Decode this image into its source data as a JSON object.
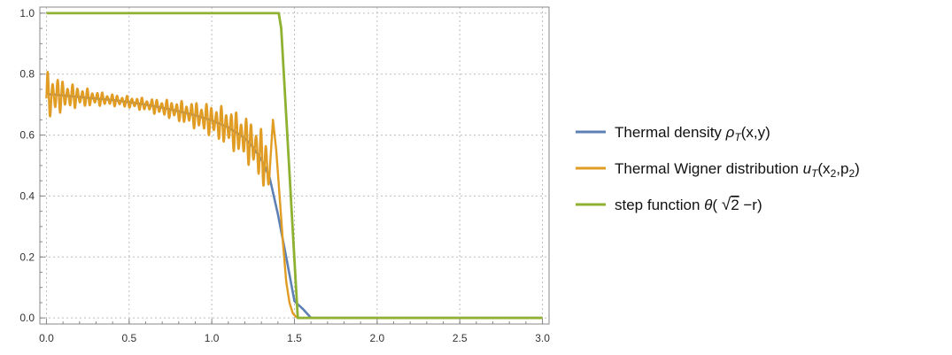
{
  "chart_data": {
    "type": "line",
    "title": "",
    "xlabel": "",
    "ylabel": "",
    "xlim": [
      0,
      3.0
    ],
    "ylim": [
      0,
      1.0
    ],
    "grid": true,
    "legend_position": "right",
    "x_ticks": [
      "0.0",
      "0.5",
      "1.0",
      "1.5",
      "2.0",
      "2.5",
      "3.0"
    ],
    "y_ticks": [
      "0.0",
      "0.2",
      "0.4",
      "0.6",
      "0.8",
      "1.0"
    ],
    "series": [
      {
        "name": "Thermal density ρT(x,y)",
        "legend": {
          "prefix": "Thermal density ",
          "sym": "ρ",
          "sub": "T",
          "suffix": "(x,y)"
        },
        "color": "#5e81b5",
        "x": [
          0.0,
          0.1,
          0.2,
          0.3,
          0.4,
          0.5,
          0.6,
          0.7,
          0.8,
          0.9,
          1.0,
          1.1,
          1.2,
          1.25,
          1.3,
          1.35,
          1.4,
          1.45,
          1.5,
          1.55,
          1.6,
          1.7,
          2.0,
          2.5,
          3.0
        ],
        "y": [
          0.735,
          0.73,
          0.725,
          0.72,
          0.715,
          0.708,
          0.7,
          0.69,
          0.678,
          0.665,
          0.648,
          0.625,
          0.59,
          0.56,
          0.52,
          0.46,
          0.34,
          0.2,
          0.055,
          0.03,
          0.0,
          0.0,
          0.0,
          0.0,
          0.0
        ]
      },
      {
        "name": "Thermal Wigner distribution uT(x2,p2)",
        "legend": {
          "prefix": "Thermal Wigner distribution ",
          "sym": "u",
          "sub": "T",
          "suffix": "(x",
          "sub2": "2",
          "mid": ",p",
          "sub3": "2",
          "end": ")"
        },
        "color": "#e19c24",
        "envelope": {
          "x": [
            0.0,
            0.05,
            0.1,
            0.2,
            0.3,
            0.4,
            0.5,
            0.6,
            0.7,
            0.8,
            0.9,
            1.0,
            1.1,
            1.2,
            1.25,
            1.3,
            1.35
          ],
          "center": [
            0.72,
            0.73,
            0.73,
            0.725,
            0.72,
            0.715,
            0.708,
            0.7,
            0.69,
            0.678,
            0.665,
            0.648,
            0.625,
            0.59,
            0.565,
            0.53,
            0.48
          ],
          "amplitude": [
            0.09,
            0.07,
            0.05,
            0.035,
            0.025,
            0.02,
            0.02,
            0.022,
            0.028,
            0.035,
            0.045,
            0.055,
            0.065,
            0.075,
            0.08,
            0.09,
            0.1
          ],
          "period": 0.03
        },
        "tail": {
          "x": [
            1.35,
            1.37,
            1.39,
            1.41,
            1.43,
            1.45,
            1.47,
            1.49,
            1.51,
            1.53,
            1.6,
            2.0,
            2.5,
            3.0
          ],
          "y": [
            0.58,
            0.65,
            0.55,
            0.4,
            0.25,
            0.12,
            0.05,
            0.015,
            0.003,
            0.0,
            0.0,
            0.0,
            0.0,
            0.0
          ]
        }
      },
      {
        "name": "step function θ(√2−r)",
        "legend": {
          "prefix": "step function ",
          "sym": "θ",
          "open": "( ",
          "sqrt": "2",
          "suffix": " −r)"
        },
        "color": "#8fb131",
        "x": [
          0.0,
          1.405,
          1.42,
          1.52,
          1.53,
          3.0
        ],
        "y": [
          1.0,
          1.0,
          0.95,
          0.0,
          0.0,
          0.0
        ]
      }
    ]
  }
}
